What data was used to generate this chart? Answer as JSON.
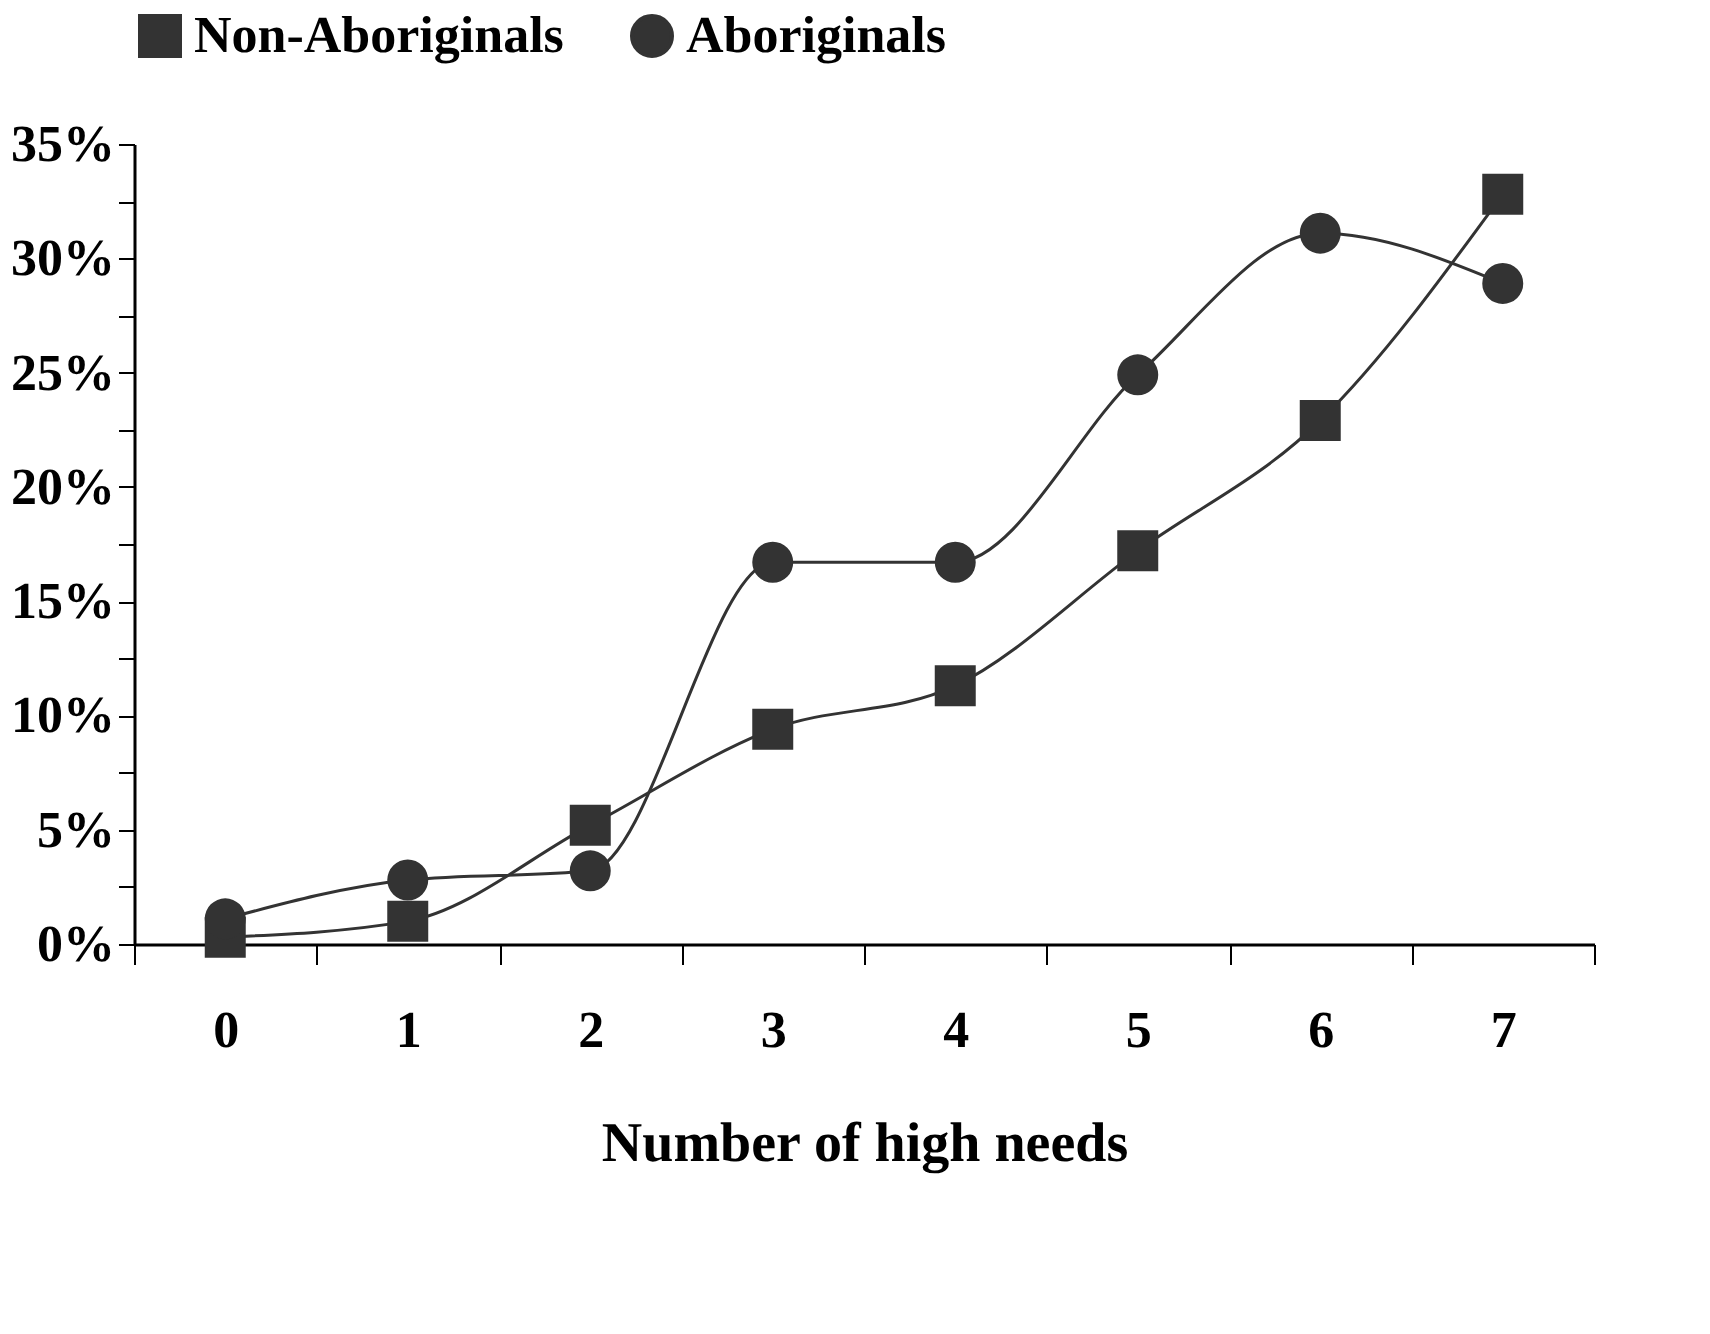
{
  "chart_data": {
    "type": "line",
    "xlabel": "Number of high needs",
    "categories": [
      "0",
      "1",
      "2",
      "3",
      "4",
      "5",
      "6",
      "7"
    ],
    "series": [
      {
        "name": "Non-Aboriginals",
        "color": "#333333",
        "marker": "square",
        "values": [
          0.3,
          1.0,
          5.2,
          9.4,
          11.3,
          17.2,
          22.9,
          32.8
        ]
      },
      {
        "name": "Aboriginals",
        "color": "#333333",
        "marker": "circle",
        "values": [
          1.1,
          2.8,
          3.2,
          16.7,
          16.7,
          24.9,
          31.1,
          28.9
        ]
      }
    ],
    "ylim": [
      0,
      35
    ],
    "yticks": [
      {
        "value": 0,
        "label": "0%"
      },
      {
        "value": 2.5,
        "label": null
      },
      {
        "value": 5,
        "label": "5%"
      },
      {
        "value": 7.5,
        "label": null
      },
      {
        "value": 10,
        "label": "10%"
      },
      {
        "value": 12.5,
        "label": null
      },
      {
        "value": 15,
        "label": "15%"
      },
      {
        "value": 17.5,
        "label": null
      },
      {
        "value": 20,
        "label": "20%"
      },
      {
        "value": 22.5,
        "label": null
      },
      {
        "value": 25,
        "label": "25%"
      },
      {
        "value": 27.5,
        "label": null
      },
      {
        "value": 30,
        "label": "30%"
      },
      {
        "value": 32.5,
        "label": null
      },
      {
        "value": 35,
        "label": "35%"
      }
    ],
    "legend": "top",
    "grid": false
  }
}
